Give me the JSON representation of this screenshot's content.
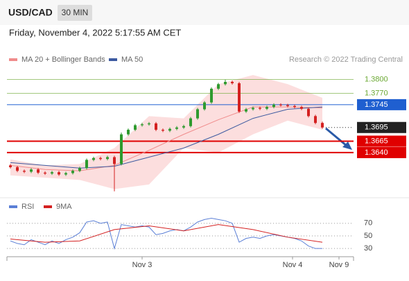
{
  "header": {
    "symbol": "USD/CAD",
    "timeframe": "30 MIN",
    "datetime": "Friday, November 4, 2022 5:17:55 AM CET",
    "credit": "Research © 2022 Trading Central"
  },
  "chart_data": [
    {
      "type": "candlestick",
      "xlim": [
        -0.5,
        49.5
      ],
      "ylim": [
        1.3541,
        1.383
      ],
      "up_color": "#2e9a2e",
      "down_color": "#d42020",
      "open": [
        1.3612,
        1.3608,
        1.36,
        1.3598,
        1.3603,
        1.3596,
        1.3594,
        1.3597,
        1.3592,
        1.3595,
        1.36,
        1.3606,
        1.3624,
        1.3628,
        1.3626,
        1.363,
        1.3615,
        1.368,
        1.369,
        1.37,
        1.3702,
        1.3704,
        1.369,
        1.3688,
        1.3692,
        1.3695,
        1.3698,
        1.3715,
        1.3735,
        1.375,
        1.378,
        1.379,
        1.3795,
        1.3792,
        1.373,
        1.3735,
        1.3738,
        1.3736,
        1.374,
        1.3745,
        1.3744,
        1.3742,
        1.374,
        1.3736,
        1.372,
        1.3705
      ],
      "high": [
        1.3615,
        1.3611,
        1.3603,
        1.3606,
        1.3606,
        1.3599,
        1.36,
        1.36,
        1.3598,
        1.3603,
        1.3609,
        1.3627,
        1.3631,
        1.3631,
        1.3633,
        1.3633,
        1.3684,
        1.3693,
        1.3703,
        1.3705,
        1.3707,
        1.3707,
        1.3693,
        1.3695,
        1.3698,
        1.3701,
        1.3718,
        1.3738,
        1.3753,
        1.3783,
        1.3793,
        1.38,
        1.3798,
        1.3795,
        1.3738,
        1.3741,
        1.3741,
        1.3743,
        1.3748,
        1.3748,
        1.3747,
        1.3745,
        1.3743,
        1.3739,
        1.3723,
        1.3708
      ],
      "low": [
        1.3605,
        1.3597,
        1.3595,
        1.3595,
        1.3593,
        1.3591,
        1.3591,
        1.3589,
        1.3589,
        1.3592,
        1.3597,
        1.3603,
        1.3621,
        1.3623,
        1.3623,
        1.3555,
        1.3612,
        1.3677,
        1.3687,
        1.3697,
        1.3699,
        1.3687,
        1.3685,
        1.3685,
        1.3689,
        1.3692,
        1.3695,
        1.3712,
        1.3732,
        1.3747,
        1.3777,
        1.3787,
        1.3789,
        1.3727,
        1.3727,
        1.3732,
        1.3733,
        1.3733,
        1.3737,
        1.3741,
        1.3739,
        1.3737,
        1.3733,
        1.3717,
        1.3702,
        1.3692
      ],
      "close": [
        1.3608,
        1.36,
        1.3598,
        1.3603,
        1.3596,
        1.3594,
        1.3597,
        1.3592,
        1.3595,
        1.36,
        1.3606,
        1.3624,
        1.3628,
        1.3626,
        1.363,
        1.3615,
        1.368,
        1.369,
        1.37,
        1.3702,
        1.3704,
        1.369,
        1.3688,
        1.3692,
        1.3695,
        1.3698,
        1.3715,
        1.3735,
        1.375,
        1.378,
        1.379,
        1.3795,
        1.3792,
        1.373,
        1.3735,
        1.3738,
        1.3736,
        1.374,
        1.3745,
        1.3744,
        1.3742,
        1.374,
        1.3736,
        1.372,
        1.3705,
        1.3695
      ],
      "overlays": [
        {
          "name": "MA 20 + Bollinger Bands",
          "color": "#f08c8c",
          "band_color": "#fbd3d3",
          "x": [
            0,
            5,
            10,
            15,
            20,
            25,
            30,
            35,
            40,
            45
          ],
          "values": [
            1.3612,
            1.3603,
            1.36,
            1.3612,
            1.3645,
            1.368,
            1.3712,
            1.374,
            1.374,
            1.3738
          ],
          "upper": [
            1.3625,
            1.3612,
            1.3615,
            1.365,
            1.372,
            1.3715,
            1.379,
            1.381,
            1.379,
            1.376
          ],
          "lower": [
            1.359,
            1.3585,
            1.358,
            1.356,
            1.357,
            1.365,
            1.364,
            1.368,
            1.371,
            1.369
          ]
        },
        {
          "name": "MA 50",
          "color": "#3c5aa0",
          "x": [
            0,
            5,
            10,
            15,
            20,
            25,
            30,
            35,
            40,
            45
          ],
          "values": [
            1.3618,
            1.3612,
            1.3606,
            1.361,
            1.363,
            1.365,
            1.368,
            1.3715,
            1.3735,
            1.374
          ]
        }
      ],
      "levels": [
        {
          "value": 1.38,
          "label": "1.3800",
          "color": "#6aa832",
          "box": false,
          "dash": false
        },
        {
          "value": 1.377,
          "label": "1.3770",
          "color": "#6aa832",
          "box": false,
          "dash": false
        },
        {
          "value": 1.3745,
          "label": "1.3745",
          "color": "#1f5fd0",
          "box": true,
          "dash": false
        },
        {
          "value": 1.3695,
          "label": "1.3695",
          "color": "#222222",
          "box": true,
          "dash": true
        },
        {
          "value": 1.3665,
          "label": "1.3665",
          "color": "#e00000",
          "box": true,
          "dash": false
        },
        {
          "value": 1.364,
          "label": "1.3640",
          "color": "#e00000",
          "box": true,
          "dash": false
        }
      ]
    },
    {
      "type": "line",
      "xlim": [
        -0.5,
        49.5
      ],
      "ylim": [
        17,
        94
      ],
      "yticks": [
        30,
        50,
        70
      ],
      "xticks": [
        {
          "value": 19,
          "label": "Nov 3"
        },
        {
          "value": 40.7,
          "label": "Nov 4"
        },
        {
          "value": 47.4,
          "label": "Nov 9"
        }
      ],
      "series": [
        {
          "name": "RSI",
          "color": "#5b7fd6",
          "x": [
            0,
            1,
            2,
            3,
            4,
            5,
            6,
            7,
            8,
            9,
            10,
            11,
            12,
            13,
            14,
            15,
            16,
            17,
            18,
            19,
            20,
            21,
            22,
            23,
            24,
            25,
            26,
            27,
            28,
            29,
            30,
            31,
            32,
            33,
            34,
            35,
            36,
            37,
            38,
            39,
            40,
            41,
            42,
            43,
            44,
            45
          ],
          "values": [
            42,
            38,
            36,
            44,
            40,
            36,
            42,
            38,
            44,
            48,
            55,
            72,
            74,
            70,
            72,
            30,
            68,
            66,
            64,
            66,
            64,
            52,
            54,
            58,
            60,
            58,
            64,
            72,
            76,
            78,
            76,
            74,
            70,
            40,
            46,
            48,
            46,
            50,
            52,
            50,
            48,
            46,
            42,
            34,
            30,
            30
          ]
        },
        {
          "name": "9MA",
          "color": "#d42020",
          "x": [
            0,
            5,
            10,
            15,
            20,
            25,
            30,
            35,
            40,
            45
          ],
          "values": [
            45,
            40,
            42,
            60,
            66,
            58,
            68,
            60,
            48,
            40
          ]
        }
      ]
    }
  ]
}
